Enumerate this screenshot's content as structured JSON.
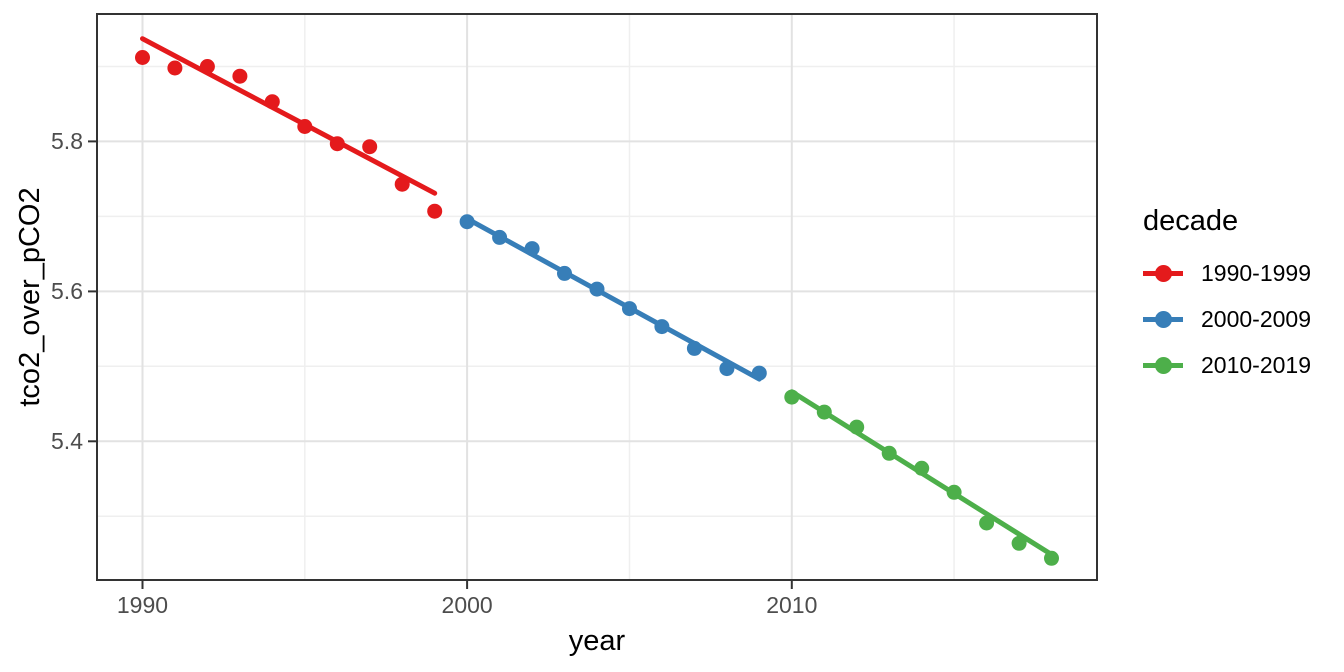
{
  "legend": {
    "title": "decade",
    "entries": [
      {
        "label": "1990-1999",
        "color": "#E41A1C"
      },
      {
        "label": "2000-2009",
        "color": "#377EB8"
      },
      {
        "label": "2010-2019",
        "color": "#4DAF4A"
      }
    ]
  },
  "style": {
    "grid_major_color": "#E2E2E2",
    "grid_minor_color": "#EFEFEF",
    "panel_border_color": "#333333",
    "tick_mark_color": "#333333",
    "tick_label_color": "#4d4d4d",
    "title_color": "#000000",
    "background": "#ffffff"
  },
  "chart_data": {
    "type": "scatter",
    "title": "",
    "xlabel": "year",
    "ylabel": "tco2_over_pCO2",
    "xlim": [
      1988.6,
      2019.4
    ],
    "ylim": [
      5.215,
      5.97
    ],
    "grid": true,
    "legend_position": "right",
    "x_ticks": {
      "major": [
        1990,
        2000,
        2010
      ],
      "minor": [
        1995,
        2005,
        2015
      ],
      "labels": [
        "1990",
        "2000",
        "2010"
      ]
    },
    "y_ticks": {
      "major": [
        5.4,
        5.6,
        5.8
      ],
      "minor": [
        5.3,
        5.5,
        5.7,
        5.9
      ],
      "labels": [
        "5.4",
        "5.6",
        "5.8"
      ]
    },
    "series": [
      {
        "name": "1990-1999",
        "color": "#E41A1C",
        "x": [
          1990,
          1991,
          1992,
          1993,
          1994,
          1995,
          1996,
          1997,
          1998,
          1999
        ],
        "y": [
          5.912,
          5.898,
          5.9,
          5.887,
          5.853,
          5.82,
          5.797,
          5.793,
          5.743,
          5.707
        ],
        "trend": {
          "x": [
            1990.0,
            1999.0
          ],
          "y": [
            5.937,
            5.731
          ]
        }
      },
      {
        "name": "2000-2009",
        "color": "#377EB8",
        "x": [
          2000,
          2001,
          2002,
          2003,
          2004,
          2005,
          2006,
          2007,
          2008,
          2009
        ],
        "y": [
          5.693,
          5.672,
          5.657,
          5.624,
          5.603,
          5.577,
          5.553,
          5.524,
          5.497,
          5.491
        ],
        "trend": {
          "x": [
            2000.0,
            2009.0
          ],
          "y": [
            5.697,
            5.483
          ]
        }
      },
      {
        "name": "2010-2019",
        "color": "#4DAF4A",
        "x": [
          2010,
          2011,
          2012,
          2013,
          2014,
          2015,
          2016,
          2017,
          2018
        ],
        "y": [
          5.459,
          5.439,
          5.419,
          5.384,
          5.364,
          5.332,
          5.291,
          5.264,
          5.244
        ],
        "trend": {
          "x": [
            2010.0,
            2018.0
          ],
          "y": [
            5.466,
            5.249
          ]
        }
      }
    ]
  }
}
